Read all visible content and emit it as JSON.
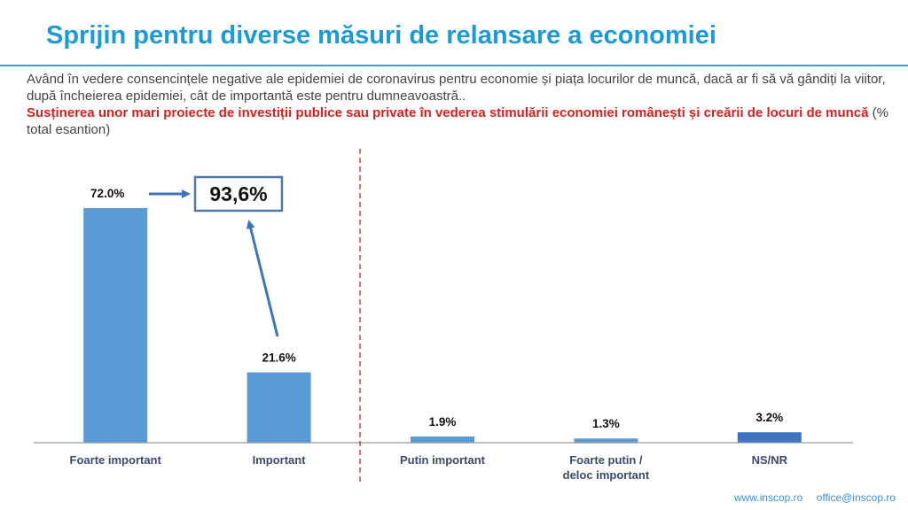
{
  "header": {
    "title": "Sprijin pentru diverse măsuri de relansare a economiei",
    "question": "Având în vedere consencințele negative ale epidemiei de coronavirus pentru economie și piața locurilor de muncă, dacă ar fi să vă gândiți la viitor, după încheierea epidemiei, cât de importantă este pentru dumneavoastră..",
    "measure": "Susținerea unor mari proiecte de investiții publice sau private în vederea stimulării economiei românești și creării de locuri de muncă",
    "measure_note": "(% total esantion)"
  },
  "chart_data": {
    "type": "bar",
    "categories": [
      "Foarte important",
      "Important",
      "Putin important",
      "Foarte putin / deloc important",
      "NS/NR"
    ],
    "values": [
      72.0,
      21.6,
      1.9,
      1.3,
      3.2
    ],
    "value_labels": [
      "72.0%",
      "21.6%",
      "1.9%",
      "1.3%",
      "3.2%"
    ],
    "ylim": [
      0,
      100
    ],
    "grid": false,
    "bar_colors": [
      "#5b9bd5",
      "#5b9bd5",
      "#5b9bd5",
      "#5b9bd5",
      "#3e74bc"
    ],
    "callout": {
      "label": "93,6%",
      "sums_categories": [
        "Foarte important",
        "Important"
      ]
    },
    "divider": {
      "style": "dashed",
      "color": "#d8201e",
      "after_category": "Important"
    }
  },
  "footer": {
    "website": "www.inscop.ro",
    "email": "office@inscop.ro"
  }
}
